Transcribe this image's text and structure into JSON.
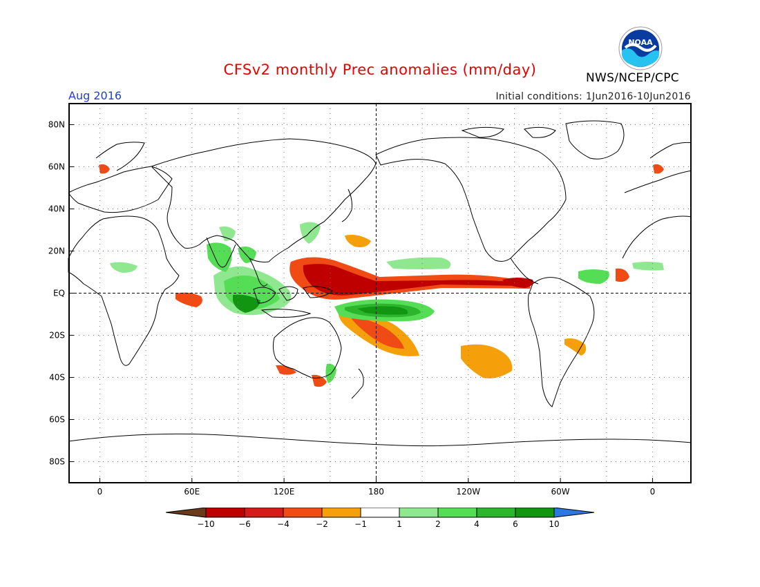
{
  "header": {
    "title": "CFSv2 monthly Prec anomalies (mm/day)",
    "month": "Aug 2016",
    "initial_conditions": "Initial conditions: 1Jun2016-10Jun2016",
    "agency": "NWS/NCEP/CPC",
    "logo_text": "NOAA"
  },
  "map": {
    "lat_labels": [
      "80N",
      "60N",
      "40N",
      "20N",
      "EQ",
      "20S",
      "40S",
      "60S",
      "80S"
    ],
    "lat_values": [
      80,
      60,
      40,
      20,
      0,
      -20,
      -40,
      -60,
      -80
    ],
    "lon_labels": [
      "0",
      "60E",
      "120E",
      "180",
      "120W",
      "60W",
      "0"
    ],
    "lon_values": [
      0,
      60,
      120,
      180,
      240,
      300,
      360
    ],
    "extent": {
      "lon_min": -20,
      "lon_max": 385,
      "lat_min": -90,
      "lat_max": 90
    }
  },
  "colorbar": {
    "labels": [
      "-10",
      "-6",
      "-4",
      "-2",
      "-1",
      "1",
      "2",
      "4",
      "6",
      "10"
    ],
    "colors": [
      "#6b3a1a",
      "#bf0000",
      "#d51a1a",
      "#f04a15",
      "#f5a00a",
      "#ffffff",
      "#8fe88f",
      "#55dd55",
      "#2db52d",
      "#129612",
      "#2a78e0"
    ]
  },
  "legend_colors": {
    "wet": "#3fcc3f",
    "wet_strong": "#129612",
    "dry": "#f5a00a",
    "dry_mid": "#f04a15",
    "dry_strong": "#bf0000"
  }
}
